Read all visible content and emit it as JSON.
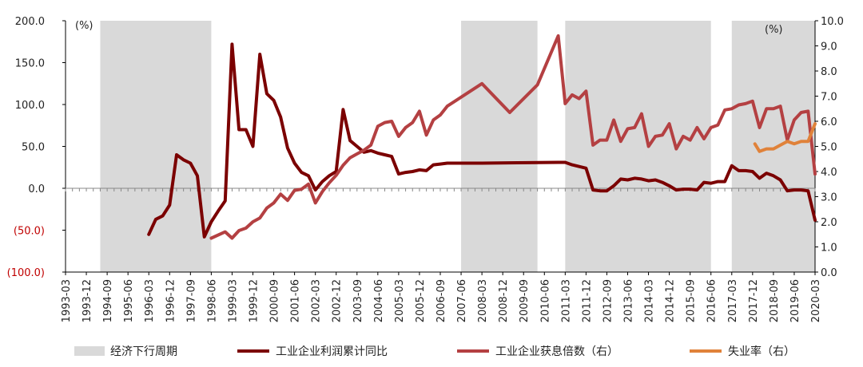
{
  "chart_data": {
    "type": "line",
    "title": "",
    "left_axis": {
      "unit": "(%)",
      "ylim": [
        -100,
        200
      ],
      "ticks": [
        200,
        150,
        100,
        50,
        0,
        -50,
        -100
      ],
      "tick_labels": [
        "200.0",
        "150.0",
        "100.0",
        "50.0",
        "0.0",
        "(50.0)",
        "(100.0)"
      ],
      "negative_color": "#c00000"
    },
    "right_axis": {
      "unit": "(%)",
      "ylim": [
        0,
        10
      ],
      "ticks": [
        10,
        9,
        8,
        7,
        6,
        5,
        4,
        3,
        2,
        1,
        0
      ],
      "tick_labels": [
        "10.0",
        "9.0",
        "8.0",
        "7.0",
        "6.0",
        "5.0",
        "4.0",
        "3.0",
        "2.0",
        "1.0",
        "0.0"
      ]
    },
    "x_axis": {
      "range": [
        "1993-03",
        "2020-03"
      ],
      "tick_labels": [
        "1993-03",
        "1993-12",
        "1994-09",
        "1995-06",
        "1996-03",
        "1996-12",
        "1997-09",
        "1998-06",
        "1999-03",
        "1999-12",
        "2000-09",
        "2001-06",
        "2002-03",
        "2002-12",
        "2003-09",
        "2004-06",
        "2005-03",
        "2005-12",
        "2006-09",
        "2007-06",
        "2008-03",
        "2008-12",
        "2009-09",
        "2010-06",
        "2011-03",
        "2011-12",
        "2012-09",
        "2013-06",
        "2014-03",
        "2014-12",
        "2015-09",
        "2016-06",
        "2017-03",
        "2017-12",
        "2018-09",
        "2019-06",
        "2020-03"
      ]
    },
    "legend_position": "bottom",
    "downturn_periods": {
      "name": "经济下行周期",
      "color": "#d9d9d9",
      "periods": [
        [
          "1994-06",
          "1998-06"
        ],
        [
          "2007-06",
          "2010-03"
        ],
        [
          "2011-03",
          "2016-06"
        ],
        [
          "2017-03",
          "2020-03"
        ]
      ]
    },
    "series": [
      {
        "name": "工业企业利润累计同比",
        "axis": "left",
        "color": "#7b0000",
        "line_width": 4,
        "x": [
          "1996-03",
          "1996-06",
          "1996-09",
          "1996-12",
          "1997-03",
          "1997-06",
          "1997-09",
          "1997-12",
          "1998-03",
          "1998-06",
          "1998-09",
          "1998-12",
          "1999-03",
          "1999-06",
          "1999-09",
          "1999-12",
          "2000-03",
          "2000-06",
          "2000-09",
          "2000-12",
          "2001-03",
          "2001-06",
          "2001-09",
          "2001-12",
          "2002-03",
          "2002-06",
          "2002-09",
          "2002-12",
          "2003-03",
          "2003-06",
          "2003-09",
          "2003-12",
          "2004-03",
          "2004-06",
          "2004-09",
          "2004-12",
          "2005-03",
          "2005-06",
          "2005-09",
          "2005-12",
          "2006-03",
          "2006-06",
          "2006-09",
          "2006-12",
          "2007-03",
          "2007-06",
          "2008-03",
          "2010-12",
          "2011-03",
          "2011-06",
          "2011-09",
          "2011-12",
          "2012-03",
          "2012-06",
          "2012-09",
          "2012-12",
          "2013-03",
          "2013-06",
          "2013-09",
          "2013-12",
          "2014-03",
          "2014-06",
          "2014-09",
          "2014-12",
          "2015-03",
          "2015-06",
          "2015-09",
          "2015-12",
          "2016-03",
          "2016-06",
          "2016-09",
          "2016-12",
          "2017-03",
          "2017-06",
          "2017-09",
          "2017-12",
          "2018-03",
          "2018-06",
          "2018-09",
          "2018-12",
          "2019-03",
          "2019-06",
          "2019-09",
          "2019-12",
          "2020-03"
        ],
        "values": [
          -55,
          -37,
          -33,
          -20,
          40,
          34,
          30,
          15,
          -58,
          -40,
          -27,
          -15,
          172,
          70,
          70,
          50,
          160,
          113,
          105,
          85,
          48,
          30,
          19,
          15,
          -2,
          8,
          15,
          20,
          94,
          57,
          50,
          43,
          45,
          42,
          40,
          38,
          17,
          19,
          20,
          22,
          21,
          28,
          29,
          30,
          30,
          30,
          30,
          31,
          31,
          28,
          26,
          24,
          -2,
          -3,
          -3,
          3,
          11,
          10,
          12,
          11,
          9,
          10,
          7,
          3,
          -2,
          -1,
          -1,
          -2,
          7,
          6,
          8,
          8,
          27,
          21,
          21,
          20,
          12,
          18,
          15,
          10,
          -3,
          -2,
          -2,
          -3,
          -38
        ]
      },
      {
        "name": "工业企业获息倍数（右）",
        "axis": "right",
        "color": "#b44042",
        "line_width": 4,
        "x": [
          "1998-06",
          "1998-12",
          "1999-03",
          "1999-06",
          "1999-09",
          "1999-12",
          "2000-03",
          "2000-06",
          "2000-09",
          "2000-12",
          "2001-03",
          "2001-06",
          "2001-09",
          "2001-12",
          "2002-03",
          "2002-06",
          "2002-09",
          "2002-12",
          "2003-03",
          "2003-06",
          "2003-09",
          "2003-12",
          "2004-03",
          "2004-06",
          "2004-09",
          "2004-12",
          "2005-03",
          "2005-06",
          "2005-09",
          "2005-12",
          "2006-03",
          "2006-06",
          "2006-09",
          "2006-12",
          "2008-03",
          "2009-03",
          "2010-03",
          "2010-12",
          "2011-03",
          "2011-06",
          "2011-09",
          "2011-12",
          "2012-03",
          "2012-06",
          "2012-09",
          "2012-12",
          "2013-03",
          "2013-06",
          "2013-09",
          "2013-12",
          "2014-03",
          "2014-06",
          "2014-09",
          "2014-12",
          "2015-03",
          "2015-06",
          "2015-09",
          "2015-12",
          "2016-03",
          "2016-06",
          "2016-09",
          "2016-12",
          "2017-03",
          "2017-06",
          "2017-09",
          "2017-12",
          "2018-03",
          "2018-06",
          "2018-09",
          "2018-12",
          "2019-03",
          "2019-06",
          "2019-09",
          "2019-12",
          "2020-03"
        ],
        "values": [
          1.35,
          1.6,
          1.35,
          1.65,
          1.75,
          2.0,
          2.15,
          2.55,
          2.75,
          3.1,
          2.85,
          3.25,
          3.3,
          3.5,
          2.75,
          3.2,
          3.55,
          3.85,
          4.25,
          4.55,
          4.7,
          4.85,
          5.05,
          5.8,
          5.95,
          6.0,
          5.4,
          5.75,
          5.95,
          6.4,
          5.45,
          6.05,
          6.25,
          6.6,
          7.5,
          6.35,
          7.45,
          9.4,
          6.7,
          7.05,
          6.9,
          7.2,
          5.05,
          5.25,
          5.25,
          6.05,
          5.2,
          5.7,
          5.75,
          6.3,
          5.0,
          5.4,
          5.45,
          5.9,
          4.9,
          5.4,
          5.25,
          5.75,
          5.3,
          5.75,
          5.85,
          6.45,
          6.5,
          6.65,
          6.7,
          6.8,
          5.75,
          6.5,
          6.5,
          6.6,
          5.25,
          6.05,
          6.35,
          6.4,
          3.9
        ]
      },
      {
        "name": "失业率（右）",
        "axis": "right",
        "color": "#e0823a",
        "line_width": 4,
        "x": [
          "2018-01",
          "2018-03",
          "2018-06",
          "2018-09",
          "2018-12",
          "2019-03",
          "2019-06",
          "2019-09",
          "2019-12",
          "2020-03"
        ],
        "values": [
          5.1,
          4.8,
          4.9,
          4.9,
          5.05,
          5.2,
          5.1,
          5.2,
          5.2,
          5.9
        ]
      }
    ]
  }
}
